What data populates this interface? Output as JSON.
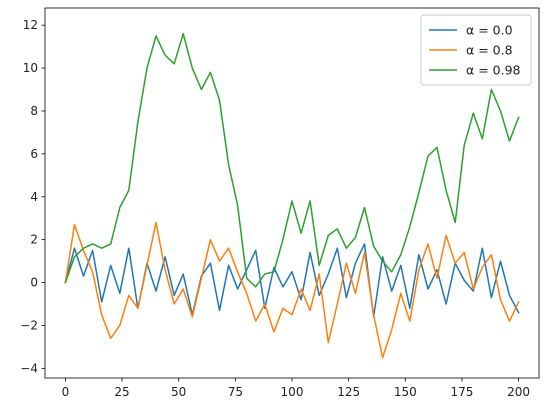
{
  "chart_data": {
    "type": "line",
    "title": "",
    "xlabel": "",
    "ylabel": "",
    "xlim": [
      -9,
      209
    ],
    "ylim": [
      -4.45,
      12.8
    ],
    "xticks": [
      0,
      25,
      50,
      75,
      100,
      125,
      150,
      175,
      200
    ],
    "yticks": [
      -4,
      -2,
      0,
      2,
      4,
      6,
      8,
      10,
      12
    ],
    "grid": false,
    "legend_position": "top-right",
    "series": [
      {
        "name": "α = 0.0",
        "color": "#1f77b4",
        "x": [
          0,
          4,
          8,
          12,
          16,
          20,
          24,
          28,
          32,
          36,
          40,
          44,
          48,
          52,
          56,
          60,
          64,
          68,
          72,
          76,
          80,
          84,
          88,
          92,
          96,
          100,
          104,
          108,
          112,
          116,
          120,
          124,
          128,
          132,
          136,
          140,
          144,
          148,
          152,
          156,
          160,
          164,
          168,
          172,
          176,
          180,
          184,
          188,
          192,
          196,
          200
        ],
        "y": [
          0,
          1.6,
          0.3,
          1.5,
          -0.9,
          0.8,
          -0.5,
          1.6,
          -1.2,
          0.9,
          -0.4,
          1.2,
          -0.6,
          0.4,
          -1.5,
          0.3,
          0.9,
          -1.3,
          0.8,
          -0.3,
          0.6,
          1.5,
          -1.2,
          0.7,
          -0.2,
          0.5,
          -0.8,
          1.4,
          -0.6,
          0.4,
          1.6,
          -0.7,
          0.9,
          1.8,
          -1.6,
          1.2,
          -0.4,
          0.8,
          -1.2,
          1.3,
          -0.3,
          0.6,
          -1.0,
          0.9,
          0.1,
          -0.4,
          1.6,
          -0.7,
          1.0,
          -0.6,
          -1.4
        ]
      },
      {
        "name": "α = 0.8",
        "color": "#ff7f0e",
        "x": [
          0,
          4,
          8,
          12,
          16,
          20,
          24,
          28,
          32,
          36,
          40,
          44,
          48,
          52,
          56,
          60,
          64,
          68,
          72,
          76,
          80,
          84,
          88,
          92,
          96,
          100,
          104,
          108,
          112,
          116,
          120,
          124,
          128,
          132,
          136,
          140,
          144,
          148,
          152,
          156,
          160,
          164,
          168,
          172,
          176,
          180,
          184,
          188,
          192,
          196,
          200
        ],
        "y": [
          0,
          2.7,
          1.5,
          0.5,
          -1.5,
          -2.6,
          -2.0,
          -0.6,
          -1.2,
          0.8,
          2.8,
          0.6,
          -1.0,
          -0.3,
          -1.6,
          0.2,
          2.0,
          1.0,
          1.6,
          0.5,
          -0.5,
          -1.8,
          -1.0,
          -2.3,
          -1.2,
          -1.5,
          -0.3,
          -1.3,
          0.4,
          -2.8,
          -1.0,
          0.9,
          -0.5,
          1.4,
          -1.5,
          -3.5,
          -2.2,
          -0.5,
          -1.8,
          0.6,
          1.8,
          0.2,
          2.2,
          0.9,
          1.4,
          -0.3,
          0.7,
          1.3,
          -0.8,
          -1.8,
          -0.9
        ]
      },
      {
        "name": "α = 0.98",
        "color": "#2ca02c",
        "x": [
          0,
          4,
          8,
          12,
          16,
          20,
          24,
          28,
          32,
          36,
          40,
          44,
          48,
          52,
          56,
          60,
          64,
          68,
          72,
          76,
          80,
          84,
          88,
          92,
          96,
          100,
          104,
          108,
          112,
          116,
          120,
          124,
          128,
          132,
          136,
          140,
          144,
          148,
          152,
          156,
          160,
          164,
          168,
          172,
          176,
          180,
          184,
          188,
          192,
          196,
          200
        ],
        "y": [
          0,
          1.2,
          1.6,
          1.8,
          1.6,
          1.8,
          3.5,
          4.3,
          7.5,
          10.0,
          11.5,
          10.6,
          10.2,
          11.6,
          10.0,
          9.0,
          9.8,
          8.5,
          5.5,
          3.6,
          0.2,
          -0.2,
          0.4,
          0.5,
          2.0,
          3.8,
          2.3,
          3.8,
          0.8,
          2.2,
          2.5,
          1.6,
          2.1,
          3.5,
          1.7,
          1.0,
          0.5,
          1.3,
          2.6,
          4.2,
          5.9,
          6.3,
          4.3,
          2.8,
          6.4,
          7.9,
          6.7,
          9.0,
          8.0,
          6.6,
          7.7
        ]
      }
    ]
  }
}
